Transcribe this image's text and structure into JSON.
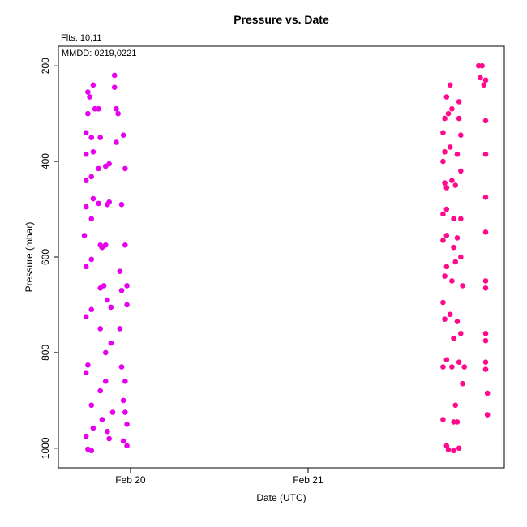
{
  "chart_data": {
    "type": "scatter",
    "title": "Pressure  vs. Date",
    "annotations": [
      "Flts: 10,11",
      "MMDD: 0219,0221"
    ],
    "x_label": "Date (UTC)",
    "y_label": "Pressure (mbar)",
    "xlim": [
      -0.406,
      2.105
    ],
    "xticks": [
      {
        "value": 0,
        "label": "Feb 20"
      },
      {
        "value": 1,
        "label": "Feb 21"
      }
    ],
    "ylim": [
      1041,
      159
    ],
    "yticks": [
      200,
      400,
      600,
      800,
      1000
    ],
    "series": [
      {
        "color": "#e600ee",
        "x": [
          -0.25,
          -0.24,
          -0.22,
          -0.21,
          -0.22,
          -0.25,
          -0.24,
          -0.25,
          -0.22,
          -0.25,
          -0.22,
          -0.26,
          -0.22,
          -0.25,
          -0.21,
          -0.25,
          -0.22,
          -0.25,
          -0.21,
          -0.25,
          -0.22,
          -0.24,
          -0.2,
          -0.24,
          -0.21,
          -0.23,
          -0.18,
          -0.17,
          -0.18,
          -0.18,
          -0.17,
          -0.16,
          -0.17,
          -0.15,
          -0.17,
          -0.14,
          -0.17,
          -0.14,
          -0.16,
          -0.13,
          -0.12,
          -0.1,
          -0.11,
          -0.11,
          -0.13,
          -0.14,
          -0.13,
          -0.12,
          -0.14,
          -0.12,
          -0.09,
          -0.09,
          -0.08,
          -0.08,
          -0.07,
          -0.06,
          -0.05,
          -0.06,
          -0.05,
          -0.04,
          -0.04,
          -0.02,
          -0.03,
          -0.02,
          -0.03,
          -0.02,
          -0.02,
          -0.03,
          -0.03,
          -0.04,
          -0.05
        ],
        "values": [
          975,
          1002,
          1005,
          958,
          910,
          842,
          826,
          725,
          710,
          620,
          605,
          555,
          520,
          495,
          478,
          440,
          432,
          385,
          380,
          340,
          350,
          300,
          290,
          255,
          240,
          265,
          290,
          350,
          415,
          488,
          575,
          580,
          665,
          660,
          750,
          800,
          880,
          860,
          940,
          965,
          980,
          925,
          780,
          705,
          690,
          575,
          490,
          485,
          410,
          405,
          245,
          220,
          290,
          360,
          300,
          630,
          670,
          750,
          830,
          900,
          985,
          995,
          925,
          950,
          860,
          700,
          660,
          575,
          415,
          345,
          490
        ]
      },
      {
        "color": "#ff0a8c",
        "x": [
          1.76,
          1.78,
          1.79,
          1.82,
          1.85,
          1.76,
          1.78,
          1.77,
          1.76,
          1.77,
          1.78,
          1.76,
          1.78,
          1.76,
          1.78,
          1.77,
          1.78,
          1.76,
          1.77,
          1.76,
          1.77,
          1.78,
          1.8,
          1.79,
          1.81,
          1.8,
          1.81,
          1.82,
          1.82,
          1.81,
          1.8,
          1.82,
          1.81,
          1.83,
          1.82,
          1.84,
          1.85,
          1.84,
          1.83,
          1.84,
          1.83,
          1.84,
          1.85,
          1.85,
          1.86,
          1.86,
          1.86,
          1.86,
          1.87,
          1.86,
          1.88,
          1.87,
          1.96,
          1.98,
          1.97,
          1.99,
          2.0,
          2.0,
          2.0,
          2.0,
          2.0,
          2.0,
          2.0,
          2.0,
          2.0,
          2.0,
          2.0,
          2.01,
          2.01
        ],
        "values": [
          940,
          995,
          1003,
          1005,
          1000,
          830,
          815,
          730,
          695,
          640,
          620,
          565,
          555,
          510,
          500,
          445,
          455,
          400,
          380,
          340,
          310,
          265,
          240,
          300,
          290,
          370,
          440,
          520,
          580,
          650,
          720,
          770,
          830,
          910,
          945,
          945,
          820,
          735,
          610,
          560,
          450,
          385,
          310,
          275,
          345,
          420,
          520,
          600,
          660,
          760,
          830,
          865,
          200,
          200,
          225,
          240,
          230,
          315,
          385,
          475,
          548,
          650,
          665,
          760,
          775,
          820,
          835,
          885,
          930
        ]
      }
    ]
  }
}
